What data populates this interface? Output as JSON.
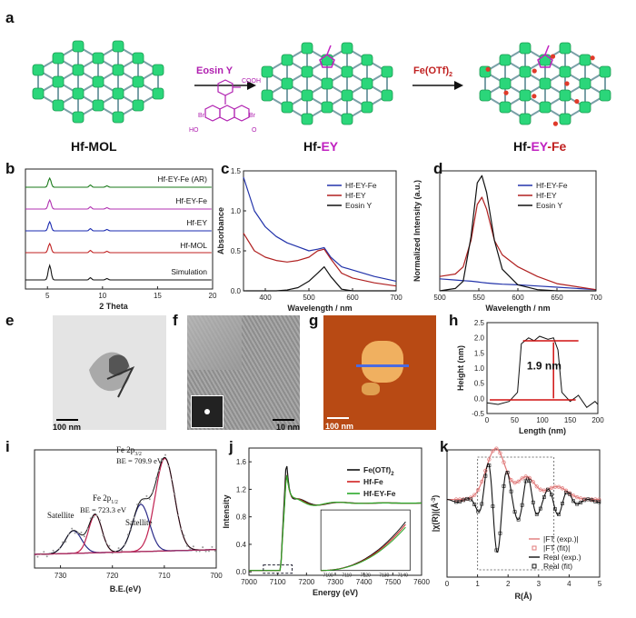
{
  "panel_labels": {
    "a": "a",
    "b": "b",
    "c": "c",
    "d": "d",
    "e": "e",
    "f": "f",
    "g": "g",
    "h": "h",
    "i": "i",
    "j": "j",
    "k": "k"
  },
  "scheme": {
    "mol_left": "Hf-MOL",
    "mol_mid_prefix": "Hf-",
    "mol_mid_suffix": "EY",
    "mol_right_prefix": "Hf-",
    "mol_right_mid": "EY",
    "mol_right_suffix": "-Fe",
    "arrow1_label": "Eosin Y",
    "arrow2_label": "Fe(OTf)",
    "arrow2_sub": "2",
    "eosin_atoms": {
      "cooh": "COOH",
      "br": "Br",
      "ho": "HO",
      "o": "O"
    },
    "colors": {
      "cluster": "#2bd67a",
      "link": "#7aa0a8",
      "ey": "#c020c0",
      "fe": "#e03a2a"
    }
  },
  "panel_b": {
    "xlabel": "2 Theta",
    "ticks": [
      "5",
      "10",
      "15",
      "20"
    ],
    "traces": [
      {
        "name": "Hf-EY-Fe (AR)",
        "color": "#1a7a1a"
      },
      {
        "name": "Hf-EY-Fe",
        "color": "#b030b0"
      },
      {
        "name": "Hf-EY",
        "color": "#1a2ab0"
      },
      {
        "name": "Hf-MOL",
        "color": "#c02020"
      },
      {
        "name": "Simulation",
        "color": "#111111"
      }
    ]
  },
  "panel_e": {
    "scale": "100 nm"
  },
  "panel_f": {
    "scale": "10 nm"
  },
  "panel_g": {
    "scale": "100 nm"
  },
  "panel_h": {
    "annotation": "1.9 nm",
    "ylabel": "Height (nm)",
    "xlabel": "Length (nm)",
    "xticks": [
      "0",
      "50",
      "100",
      "150",
      "200"
    ],
    "yticks": [
      "-0.5",
      "0.0",
      "0.5",
      "1.0",
      "1.5",
      "2.0",
      "2.5"
    ]
  },
  "panel_i": {
    "xlabel": "B.E.(eV)",
    "xticks": [
      "730",
      "720",
      "710",
      "700"
    ],
    "annotations": {
      "satellite1": "Satellite",
      "fe2p12": "Fe 2p",
      "fe2p12_sub": "1/2",
      "be1": "BE = 723.3 eV",
      "satellite2": "Satellite",
      "fe2p32": "Fe 2p",
      "fe2p32_sub": "3/2",
      "be2": "BE = 709.9 eV"
    }
  },
  "panel_j": {
    "xlabel": "Energy (eV)",
    "ylabel": "Intensity",
    "xticks": [
      "7000",
      "7100",
      "7200",
      "7300",
      "7400",
      "7500",
      "7600"
    ],
    "yticks": [
      "0.0",
      "0.4",
      "0.8",
      "1.2",
      "1.6"
    ],
    "inset_ticks": [
      "7100",
      "7110",
      "7120",
      "7130",
      "7140"
    ],
    "legend": [
      {
        "name": "Fe(OTf)",
        "sub": "2",
        "color": "#111"
      },
      {
        "name": "Hf-Fe",
        "color": "#d02020"
      },
      {
        "name": "Hf-EY-Fe",
        "color": "#2aa82a"
      }
    ]
  },
  "panel_k": {
    "xlabel": "R(Å)",
    "ylabel": "|χ(R)|(Å",
    "ylabel_sup": "-3",
    "xticks": [
      "0",
      "1",
      "2",
      "3",
      "4",
      "5"
    ],
    "legend": [
      {
        "name": "|FT (exp.)|",
        "color": "#e07a7a",
        "kind": "line"
      },
      {
        "name": "|FT (fit)|",
        "color": "#e07a7a",
        "kind": "marker"
      },
      {
        "name": "Real (exp.)",
        "color": "#111",
        "kind": "line"
      },
      {
        "name": "Real (fit)",
        "color": "#111",
        "kind": "marker"
      }
    ]
  },
  "chart_data": [
    {
      "type": "line",
      "title": "",
      "xlabel": "Wavelength / nm",
      "ylabel": "Absorbance",
      "xlim": [
        350,
        700
      ],
      "ylim": [
        0,
        1.5
      ],
      "xticks": [
        "400",
        "500",
        "600",
        "700"
      ],
      "yticks": [
        "0.0",
        "0.5",
        "1.0",
        "1.5"
      ],
      "x": [
        350,
        375,
        400,
        425,
        450,
        475,
        500,
        520,
        535,
        550,
        575,
        600,
        650,
        700
      ],
      "series": [
        {
          "name": "Hf-EY-Fe",
          "color": "#2233aa",
          "values": [
            1.42,
            1.0,
            0.8,
            0.68,
            0.6,
            0.55,
            0.5,
            0.52,
            0.54,
            0.42,
            0.3,
            0.26,
            0.18,
            0.12
          ]
        },
        {
          "name": "Hf-EY",
          "color": "#b02020",
          "values": [
            0.72,
            0.5,
            0.42,
            0.38,
            0.36,
            0.38,
            0.42,
            0.5,
            0.52,
            0.4,
            0.22,
            0.16,
            0.1,
            0.06
          ]
        },
        {
          "name": "Eosin Y",
          "color": "#111111",
          "values": [
            0.0,
            0.0,
            0.0,
            0.0,
            0.01,
            0.04,
            0.12,
            0.22,
            0.3,
            0.18,
            0.02,
            0.0,
            0.0,
            0.0
          ]
        }
      ]
    },
    {
      "type": "line",
      "title": "",
      "xlabel": "Wavelength / nm",
      "ylabel": "Normalized Intensity (a.u.)",
      "xlim": [
        500,
        700
      ],
      "xticks": [
        "500",
        "550",
        "600",
        "650",
        "700"
      ],
      "x": [
        500,
        520,
        530,
        540,
        548,
        554,
        560,
        570,
        580,
        600,
        625,
        650,
        700
      ],
      "series": [
        {
          "name": "Hf-EY-Fe",
          "color": "#2233aa",
          "values": [
            0.1,
            0.09,
            0.085,
            0.08,
            0.075,
            0.07,
            0.065,
            0.06,
            0.055,
            0.05,
            0.04,
            0.03,
            0.01
          ]
        },
        {
          "name": "Hf-EY",
          "color": "#b02020",
          "values": [
            0.12,
            0.14,
            0.2,
            0.42,
            0.72,
            0.78,
            0.68,
            0.42,
            0.3,
            0.2,
            0.12,
            0.06,
            0.01
          ]
        },
        {
          "name": "Eosin Y",
          "color": "#111111",
          "values": [
            0.0,
            0.02,
            0.08,
            0.45,
            0.9,
            0.96,
            0.82,
            0.42,
            0.18,
            0.05,
            0.01,
            0.0,
            0.0
          ]
        }
      ]
    }
  ]
}
